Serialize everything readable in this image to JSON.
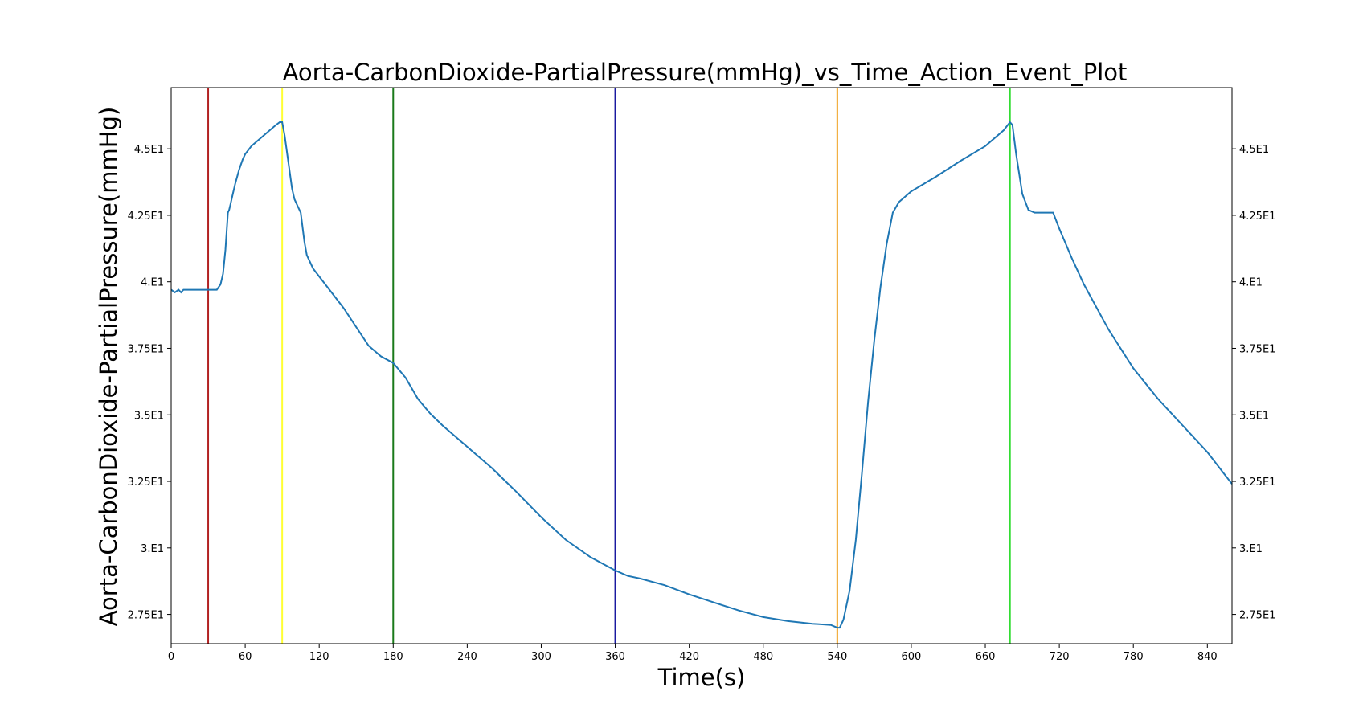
{
  "chart_data": {
    "type": "line",
    "title": "Aorta-CarbonDioxide-PartialPressure(mmHg)_vs_Time_Action_Event_Plot",
    "xlabel": "Time(s)",
    "ylabel": "Aorta-CarbonDioxide-PartialPressure(mmHg)",
    "xlim": [
      0,
      860
    ],
    "ylim": [
      26.4,
      47.3
    ],
    "x_ticks": [
      0,
      60,
      120,
      180,
      240,
      300,
      360,
      420,
      480,
      540,
      600,
      660,
      720,
      780,
      840
    ],
    "y_ticks": [
      27.5,
      30,
      32.5,
      35,
      37.5,
      40,
      42.5,
      45
    ],
    "y_tick_labels": [
      "2.75E1",
      "3.E1",
      "3.25E1",
      "3.5E1",
      "3.75E1",
      "4.E1",
      "4.25E1",
      "4.5E1"
    ],
    "grid": false,
    "legend": "none",
    "line_color": "#1f77b4",
    "series": [
      {
        "x": [
          0,
          3,
          6,
          8,
          10,
          20,
          30,
          37,
          40,
          42,
          44,
          46,
          47,
          48,
          50,
          52,
          55,
          58,
          60,
          65,
          70,
          75,
          80,
          85,
          88,
          90,
          92,
          95,
          98,
          100,
          103,
          105,
          108,
          110,
          115,
          120,
          130,
          140,
          150,
          160,
          170,
          180,
          190,
          200,
          210,
          220,
          240,
          260,
          280,
          300,
          320,
          340,
          360,
          370,
          380,
          400,
          420,
          440,
          460,
          480,
          500,
          520,
          535,
          540,
          542,
          545,
          550,
          555,
          560,
          565,
          570,
          575,
          580,
          585,
          590,
          600,
          620,
          640,
          660,
          675,
          680,
          682,
          685,
          690,
          695,
          700,
          710,
          715,
          720,
          730,
          740,
          760,
          780,
          800,
          820,
          840,
          860
        ],
        "y": [
          39.7,
          39.6,
          39.7,
          39.6,
          39.7,
          39.7,
          39.7,
          39.7,
          39.9,
          40.3,
          41.2,
          42.6,
          42.7,
          42.9,
          43.3,
          43.7,
          44.2,
          44.6,
          44.8,
          45.1,
          45.3,
          45.5,
          45.7,
          45.9,
          46.0,
          46.0,
          45.5,
          44.5,
          43.5,
          43.1,
          42.8,
          42.6,
          41.5,
          41.0,
          40.5,
          40.2,
          39.6,
          39.0,
          38.3,
          37.6,
          37.2,
          36.95,
          36.4,
          35.6,
          35.05,
          34.6,
          33.8,
          33.0,
          32.1,
          31.15,
          30.3,
          29.65,
          29.15,
          28.95,
          28.85,
          28.6,
          28.25,
          27.95,
          27.65,
          27.4,
          27.25,
          27.15,
          27.1,
          27.0,
          27.0,
          27.3,
          28.4,
          30.3,
          32.8,
          35.5,
          37.8,
          39.8,
          41.4,
          42.6,
          43.0,
          43.4,
          43.95,
          44.55,
          45.1,
          45.7,
          46.0,
          45.9,
          44.8,
          43.3,
          42.7,
          42.6,
          42.6,
          42.6,
          42.0,
          40.9,
          39.9,
          38.2,
          36.75,
          35.6,
          34.6,
          33.6,
          32.4
        ]
      }
    ],
    "event_lines": [
      {
        "x": 30,
        "color": "#b22222"
      },
      {
        "x": 90,
        "color": "#ffff33"
      },
      {
        "x": 180,
        "color": "#1a7a1a"
      },
      {
        "x": 360,
        "color": "#1a1aa0"
      },
      {
        "x": 540,
        "color": "#f0a020"
      },
      {
        "x": 680,
        "color": "#33dd33"
      }
    ]
  }
}
